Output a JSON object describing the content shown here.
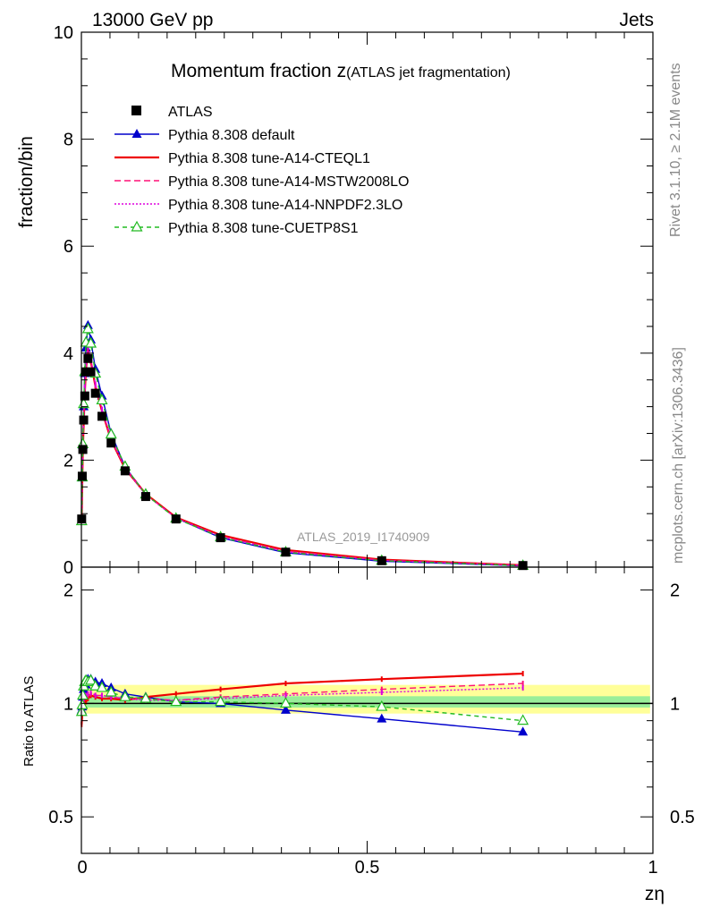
{
  "header": {
    "left": "13000 GeV pp",
    "right": "Jets"
  },
  "side_labels": {
    "rivet": "Rivet 3.1.10, ≥ 2.1M events",
    "mcplots": "mcplots.cern.ch [arXiv:1306.3436]"
  },
  "chart_data": [
    {
      "type": "line",
      "title_main": "Momentum fraction z",
      "title_sub": "(ATLAS jet fragmentation)",
      "ylabel": "fraction/bin",
      "xlabel": "",
      "xlim": [
        0,
        1
      ],
      "ylim": [
        0,
        10
      ],
      "yticks": [
        0,
        2,
        4,
        6,
        8,
        10
      ],
      "ytick_labels": [
        "0",
        "2",
        "4",
        "6",
        "8",
        "10"
      ],
      "watermark": "ATLAS_2019_I1740909",
      "legend_position": "top-left",
      "x": [
        0.0005,
        0.0015,
        0.0025,
        0.004,
        0.006,
        0.008,
        0.0115,
        0.0165,
        0.0245,
        0.036,
        0.052,
        0.0765,
        0.1125,
        0.1655,
        0.2435,
        0.3575,
        0.5255,
        0.7725
      ],
      "series": [
        {
          "name": "ATLAS",
          "color": "#000000",
          "marker": "square",
          "values": [
            0.9,
            1.7,
            2.2,
            2.75,
            3.2,
            3.65,
            3.9,
            3.65,
            3.25,
            2.82,
            2.32,
            1.8,
            1.32,
            0.9,
            0.55,
            0.28,
            0.12,
            0.03
          ]
        },
        {
          "name": "Pythia 8.308 default",
          "color": "#0000cc",
          "marker": "triangle",
          "dash": "",
          "values": [
            0.86,
            1.67,
            2.28,
            3.0,
            3.62,
            4.1,
            4.52,
            4.25,
            3.7,
            3.2,
            2.5,
            1.87,
            1.37,
            0.92,
            0.55,
            0.27,
            0.11,
            0.025
          ]
        },
        {
          "name": "Pythia 8.308 tune-A14-CTEQL1",
          "color": "#ee0000",
          "marker": "",
          "dash": "",
          "values": [
            0.85,
            1.6,
            2.15,
            2.7,
            3.25,
            3.7,
            4.05,
            3.85,
            3.38,
            2.92,
            2.38,
            1.84,
            1.37,
            0.93,
            0.6,
            0.32,
            0.14,
            0.036
          ]
        },
        {
          "name": "Pythia 8.308 tune-A14-MSTW2008LO",
          "color": "#ff1177",
          "marker": "",
          "dash": "7,4",
          "values": [
            0.86,
            1.65,
            2.2,
            2.8,
            3.35,
            3.8,
            4.1,
            3.88,
            3.4,
            2.95,
            2.4,
            1.85,
            1.36,
            0.92,
            0.58,
            0.3,
            0.13,
            0.034
          ]
        },
        {
          "name": "Pythia 8.308 tune-A14-NNPDF2.3LO",
          "color": "#dd00dd",
          "marker": "",
          "dash": "2,2",
          "values": [
            0.87,
            1.66,
            2.22,
            2.82,
            3.37,
            3.82,
            4.12,
            3.9,
            3.42,
            2.95,
            2.4,
            1.85,
            1.35,
            0.92,
            0.57,
            0.29,
            0.125,
            0.033
          ]
        },
        {
          "name": "Pythia 8.308 tune-CUETP8S1",
          "color": "#22bb22",
          "marker": "triangle-open",
          "dash": "5,4",
          "values": [
            0.86,
            1.68,
            2.3,
            3.05,
            3.65,
            4.2,
            4.45,
            4.18,
            3.62,
            3.12,
            2.48,
            1.88,
            1.36,
            0.91,
            0.56,
            0.28,
            0.12,
            0.027
          ]
        }
      ]
    },
    {
      "type": "line",
      "ylabel": "Ratio to ATLAS",
      "xlabel": "zη",
      "xlim": [
        0,
        1
      ],
      "ylim": [
        0.4,
        2.3
      ],
      "yticks": [
        0.5,
        1,
        2
      ],
      "ytick_labels": [
        "0.5",
        "1",
        "2"
      ],
      "xticks": [
        0,
        0.5,
        1
      ],
      "xtick_labels": [
        "0",
        "0.5",
        "1"
      ],
      "x": [
        0.0005,
        0.0015,
        0.0025,
        0.004,
        0.006,
        0.008,
        0.0115,
        0.0165,
        0.0245,
        0.036,
        0.052,
        0.0765,
        0.1125,
        0.1655,
        0.2435,
        0.3575,
        0.5255,
        0.7725
      ],
      "bands": [
        {
          "label": "syst",
          "color": "#ffff99",
          "lower": 0.94,
          "upper": 1.12
        },
        {
          "label": "stat",
          "color": "#99ee99",
          "lower": 0.975,
          "upper": 1.045
        }
      ],
      "series": [
        {
          "name": "Pythia 8.308 default",
          "color": "#0000cc",
          "marker": "triangle",
          "dash": "",
          "values": [
            0.96,
            0.98,
            1.04,
            1.09,
            1.13,
            1.12,
            1.16,
            1.16,
            1.14,
            1.13,
            1.1,
            1.06,
            1.04,
            1.01,
            1.0,
            0.96,
            0.91,
            0.84
          ]
        },
        {
          "name": "Pythia 8.308 tune-A14-CTEQL1",
          "color": "#ee0000",
          "marker": "",
          "dash": "",
          "values": [
            0.88,
            0.94,
            0.98,
            0.98,
            1.0,
            1.01,
            1.03,
            1.05,
            1.04,
            1.03,
            1.03,
            1.02,
            1.04,
            1.06,
            1.09,
            1.13,
            1.16,
            1.2
          ]
        },
        {
          "name": "Pythia 8.308 tune-A14-MSTW2008LO",
          "color": "#ff1177",
          "marker": "",
          "dash": "7,4",
          "values": [
            0.95,
            0.97,
            1.0,
            1.02,
            1.05,
            1.04,
            1.05,
            1.06,
            1.05,
            1.05,
            1.04,
            1.03,
            1.03,
            1.02,
            1.04,
            1.06,
            1.09,
            1.13
          ]
        },
        {
          "name": "Pythia 8.308 tune-A14-NNPDF2.3LO",
          "color": "#dd00dd",
          "marker": "",
          "dash": "2,2",
          "values": [
            0.96,
            0.98,
            1.01,
            1.03,
            1.05,
            1.05,
            1.06,
            1.07,
            1.05,
            1.05,
            1.04,
            1.03,
            1.02,
            1.02,
            1.03,
            1.05,
            1.07,
            1.1
          ]
        },
        {
          "name": "Pythia 8.308 tune-CUETP8S1",
          "color": "#22bb22",
          "marker": "triangle-open",
          "dash": "5,4",
          "values": [
            0.95,
            0.99,
            1.05,
            1.11,
            1.14,
            1.15,
            1.14,
            1.15,
            1.11,
            1.1,
            1.07,
            1.04,
            1.03,
            1.01,
            1.01,
            1.0,
            0.98,
            0.9
          ]
        }
      ]
    }
  ]
}
